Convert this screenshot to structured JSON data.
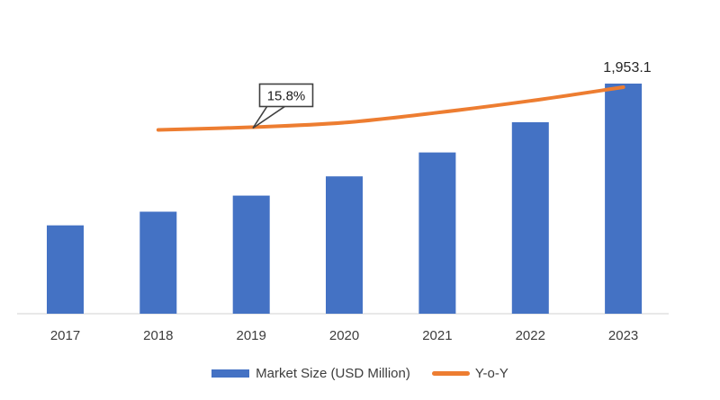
{
  "chart_data": {
    "type": "bar",
    "combo": "bar+line",
    "title": "",
    "xlabel": "",
    "ylabel": "",
    "grid": false,
    "value_axis_visible": false,
    "legend_position": "bottom",
    "categories": [
      "2017",
      "2018",
      "2019",
      "2020",
      "2021",
      "2022",
      "2023"
    ],
    "series": [
      {
        "name": "Market Size (USD Million)",
        "type": "bar",
        "color": "#4472C4",
        "values": [
          749.6,
          865.8,
          1002.6,
          1166.0,
          1368.9,
          1624.9,
          1953.1
        ]
      },
      {
        "name": "Y-o-Y",
        "type": "line",
        "color": "#ED7D31",
        "x": [
          "2018",
          "2019",
          "2020",
          "2021",
          "2022",
          "2023"
        ],
        "values": [
          15.5,
          15.8,
          16.3,
          17.4,
          18.7,
          20.2
        ]
      }
    ],
    "annotations": [
      {
        "text": "15.8%",
        "target": "Y-o-Y 2019",
        "style": "callout-box"
      },
      {
        "text": "1,953.1",
        "target": "Market Size 2023",
        "style": "data-label"
      }
    ]
  },
  "colors": {
    "bar": "#4472C4",
    "line": "#ED7D31",
    "axis": "#D9D9D9",
    "text": "#3D3D3D",
    "callout_border": "#404040",
    "background": "#FFFFFF"
  }
}
